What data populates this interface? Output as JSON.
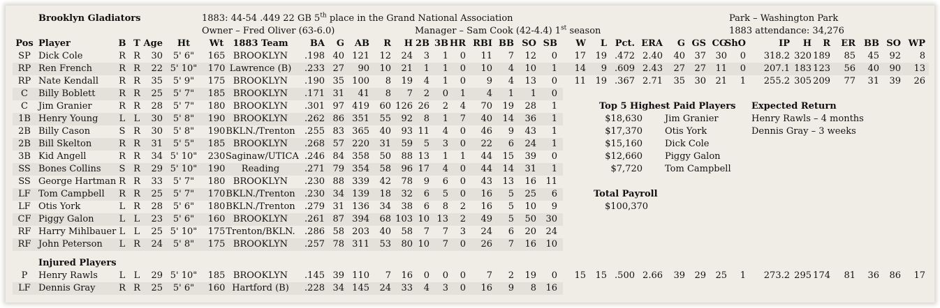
{
  "team": {
    "name": "Brooklyn Gladiators",
    "season_line_pre": "1883:  44-54  .449  22 GB  5",
    "season_line_sup": "th",
    "season_line_post": " place in the Grand National Association",
    "owner": "Owner – Fred Oliver (63-6.0)",
    "manager_pre": "Manager – Sam Cook (42-4.4)  1",
    "manager_sup": "st",
    "manager_post": " season",
    "park": "Park – Washington Park",
    "attendance": "1883 attendance:  34,276"
  },
  "headers": [
    "Pos",
    "Player",
    "B",
    "T",
    "Age",
    "Ht",
    "Wt",
    "1883 Team",
    "BA",
    "G",
    "AB",
    "R",
    "H",
    "2B",
    "3B",
    "HR",
    "RBI",
    "BB",
    "SO",
    "SB",
    "W",
    "L",
    "Pct.",
    "ERA",
    "G",
    "GS",
    "CG",
    "ShO",
    "IP",
    "H",
    "R",
    "ER",
    "BB",
    "SO",
    "WP"
  ],
  "roster": [
    [
      "SP",
      "Dick Cole",
      "R",
      "R",
      "30",
      "5' 6\"",
      "165",
      "BROOKLYN",
      ".198",
      "40",
      "121",
      "12",
      "24",
      "3",
      "1",
      "0",
      "11",
      "7",
      "12",
      "0",
      "17",
      "19",
      ".472",
      "2.40",
      "40",
      "37",
      "30",
      "0",
      "318.2",
      "320",
      "189",
      "85",
      "45",
      "92",
      "8"
    ],
    [
      "RP",
      "Ren French",
      "R",
      "R",
      "22",
      "5' 10\"",
      "170",
      "Lawrence (B)",
      ".233",
      "27",
      "90",
      "10",
      "21",
      "1",
      "1",
      "0",
      "10",
      "4",
      "10",
      "1",
      "14",
      "9",
      ".609",
      "2.43",
      "27",
      "27",
      "11",
      "0",
      "207.1",
      "183",
      "123",
      "56",
      "40",
      "90",
      "13"
    ],
    [
      "RP",
      "Nate Kendall",
      "R",
      "R",
      "35",
      "5' 9\"",
      "175",
      "BROOKLYN",
      ".190",
      "35",
      "100",
      "8",
      "19",
      "4",
      "1",
      "0",
      "9",
      "4",
      "13",
      "0",
      "11",
      "19",
      ".367",
      "2.71",
      "35",
      "30",
      "21",
      "1",
      "255.2",
      "305",
      "209",
      "77",
      "31",
      "39",
      "26"
    ],
    [
      "C",
      "Billy Boblett",
      "R",
      "R",
      "25",
      "5' 7\"",
      "185",
      "BROOKLYN",
      ".171",
      "31",
      "41",
      "8",
      "7",
      "2",
      "0",
      "1",
      "4",
      "1",
      "1",
      "0"
    ],
    [
      "C",
      "Jim Granier",
      "R",
      "R",
      "28",
      "5' 7\"",
      "180",
      "BROOKLYN",
      ".301",
      "97",
      "419",
      "60",
      "126",
      "26",
      "2",
      "4",
      "70",
      "19",
      "28",
      "1"
    ],
    [
      "1B",
      "Henry Young",
      "L",
      "L",
      "30",
      "5' 8\"",
      "190",
      "BROOKLYN",
      ".262",
      "86",
      "351",
      "55",
      "92",
      "8",
      "1",
      "7",
      "40",
      "14",
      "36",
      "1"
    ],
    [
      "2B",
      "Billy Cason",
      "S",
      "R",
      "30",
      "5' 8\"",
      "190",
      "BKLN./Trenton",
      ".255",
      "83",
      "365",
      "40",
      "93",
      "11",
      "4",
      "0",
      "46",
      "9",
      "43",
      "1"
    ],
    [
      "2B",
      "Bill Skelton",
      "R",
      "R",
      "31",
      "5' 5\"",
      "185",
      "BROOKLYN",
      ".268",
      "57",
      "220",
      "31",
      "59",
      "5",
      "3",
      "0",
      "22",
      "6",
      "24",
      "1"
    ],
    [
      "3B",
      "Kid Angell",
      "R",
      "R",
      "34",
      "5' 10\"",
      "230",
      "Saginaw/UTICA",
      ".246",
      "84",
      "358",
      "50",
      "88",
      "13",
      "1",
      "1",
      "44",
      "15",
      "39",
      "0"
    ],
    [
      "SS",
      "Bones Collins",
      "S",
      "R",
      "29",
      "5' 10\"",
      "190",
      "Reading",
      ".271",
      "79",
      "354",
      "58",
      "96",
      "17",
      "4",
      "0",
      "44",
      "14",
      "31",
      "1"
    ],
    [
      "SS",
      "George Hartman",
      "R",
      "R",
      "33",
      "5' 7\"",
      "180",
      "BROOKLYN",
      ".230",
      "88",
      "339",
      "42",
      "78",
      "9",
      "6",
      "0",
      "43",
      "13",
      "16",
      "11"
    ],
    [
      "LF",
      "Tom Campbell",
      "R",
      "R",
      "25",
      "5' 7\"",
      "170",
      "BKLN./Trenton",
      ".230",
      "34",
      "139",
      "18",
      "32",
      "6",
      "5",
      "0",
      "16",
      "5",
      "25",
      "6"
    ],
    [
      "LF",
      "Otis York",
      "L",
      "R",
      "28",
      "5' 6\"",
      "180",
      "BKLN./Trenton",
      ".279",
      "31",
      "136",
      "34",
      "38",
      "6",
      "8",
      "2",
      "16",
      "5",
      "10",
      "9"
    ],
    [
      "CF",
      "Piggy Galon",
      "L",
      "L",
      "23",
      "5' 6\"",
      "160",
      "BROOKLYN",
      ".261",
      "87",
      "394",
      "68",
      "103",
      "10",
      "13",
      "2",
      "49",
      "5",
      "50",
      "30"
    ],
    [
      "RF",
      "Harry Mihlbauer",
      "L",
      "L",
      "25",
      "5' 10\"",
      "175",
      "Trenton/BKLN.",
      ".286",
      "58",
      "203",
      "40",
      "58",
      "7",
      "7",
      "3",
      "24",
      "6",
      "20",
      "24"
    ],
    [
      "RF",
      "John Peterson",
      "L",
      "R",
      "24",
      "5' 8\"",
      "175",
      "BROOKLYN",
      ".257",
      "78",
      "311",
      "53",
      "80",
      "10",
      "7",
      "0",
      "26",
      "7",
      "16",
      "10"
    ]
  ],
  "injured_title": "Injured Players",
  "injured": [
    [
      "P",
      "Henry Rawls",
      "L",
      "L",
      "29",
      "5' 10\"",
      "185",
      "BROOKLYN",
      ".145",
      "39",
      "110",
      "7",
      "16",
      "0",
      "0",
      "0",
      "7",
      "2",
      "19",
      "0",
      "15",
      "15",
      ".500",
      "2.66",
      "39",
      "29",
      "25",
      "1",
      "273.2",
      "295",
      "174",
      "81",
      "36",
      "86",
      "17"
    ],
    [
      "LF",
      "Dennis Gray",
      "R",
      "R",
      "25",
      "5' 6\"",
      "160",
      "Hartford (B)",
      ".228",
      "34",
      "145",
      "24",
      "33",
      "4",
      "3",
      "0",
      "16",
      "9",
      "8",
      "16"
    ]
  ],
  "top_paid": {
    "title": "Top 5 Highest Paid Players",
    "rows": [
      {
        "salary": "$18,630",
        "name": "Jim Granier"
      },
      {
        "salary": "$17,370",
        "name": "Otis York"
      },
      {
        "salary": "$15,160",
        "name": "Dick Cole"
      },
      {
        "salary": "$12,660",
        "name": "Piggy Galon"
      },
      {
        "salary": "$7,720",
        "name": "Tom Campbell"
      }
    ]
  },
  "payroll": {
    "title": "Total Payroll",
    "value": "$100,370"
  },
  "expected_return": {
    "title": "Expected Return",
    "rows": [
      "Henry Rawls – 4 months",
      "Dennis Gray – 3 weeks"
    ]
  }
}
